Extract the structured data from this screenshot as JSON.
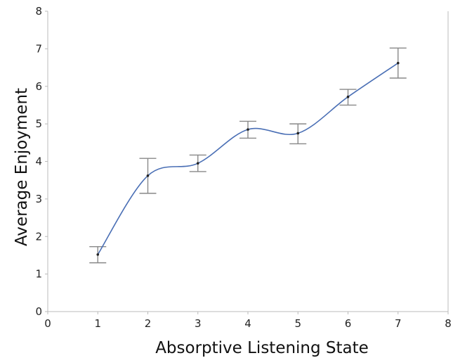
{
  "chart_data": {
    "type": "line",
    "title": "",
    "xlabel": "Absorptive Listening State",
    "ylabel": "Average Enjoyment",
    "xlim": [
      0,
      8
    ],
    "ylim": [
      0,
      8
    ],
    "xticks": [
      "0",
      "1",
      "2",
      "3",
      "4",
      "5",
      "6",
      "7",
      "8"
    ],
    "yticks": [
      "0",
      "1",
      "2",
      "3",
      "4",
      "5",
      "6",
      "7",
      "8"
    ],
    "grid": false,
    "legend": "none",
    "line_style": "smooth",
    "colors": {
      "line": "#4a6fb5",
      "error_bars": "#888888",
      "axis": "#bbbbbb",
      "point": "#222222"
    },
    "series": [
      {
        "x": [
          1,
          2,
          3,
          4,
          5,
          6,
          7
        ],
        "y": [
          1.52,
          3.62,
          3.95,
          4.85,
          4.75,
          5.72,
          6.62
        ],
        "error_low": [
          1.3,
          3.15,
          3.73,
          4.62,
          4.47,
          5.5,
          6.22
        ],
        "error_high": [
          1.73,
          4.08,
          4.17,
          5.07,
          5.0,
          5.92,
          7.02
        ]
      }
    ]
  }
}
